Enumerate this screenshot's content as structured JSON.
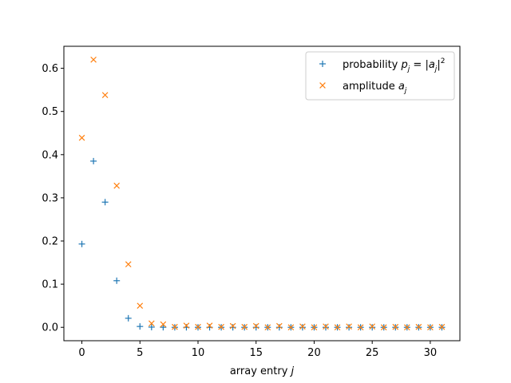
{
  "chart_data": {
    "type": "scatter",
    "title": "",
    "xlabel": {
      "text": "array entry ",
      "var": "j"
    },
    "ylabel": "",
    "xlim": [
      -1.55,
      32.55
    ],
    "ylim": [
      -0.031,
      0.651
    ],
    "xticks": [
      0,
      5,
      10,
      15,
      20,
      25,
      30
    ],
    "xtick_labels": [
      "0",
      "5",
      "10",
      "15",
      "20",
      "25",
      "30"
    ],
    "yticks": [
      0.0,
      0.1,
      0.2,
      0.3,
      0.4,
      0.5,
      0.6
    ],
    "ytick_labels": [
      "0.0",
      "0.1",
      "0.2",
      "0.3",
      "0.4",
      "0.5",
      "0.6"
    ],
    "grid": false,
    "legend_position": "top-right",
    "series": [
      {
        "name": "probability p_j = |a_j|^2",
        "legend_parts": {
          "prefix": "probability ",
          "p": "p",
          "j": "j",
          "eq": " = |",
          "a": "a",
          "j2": "j",
          "close": "|",
          "sup": "2"
        },
        "marker": "plus",
        "color": "#1f77b4",
        "x": [
          0,
          1,
          2,
          3,
          4,
          5,
          6,
          7,
          8,
          9,
          10,
          11,
          12,
          13,
          14,
          15,
          16,
          17,
          18,
          19,
          20,
          21,
          22,
          23,
          24,
          25,
          26,
          27,
          28,
          29,
          30,
          31
        ],
        "y": [
          0.193,
          0.385,
          0.29,
          0.108,
          0.021,
          0.002,
          0.0005,
          0.0002,
          0.0,
          0.0,
          0.0,
          0.0,
          0.0,
          0.0,
          0.0,
          0.0,
          0.0,
          0.0,
          0.0,
          0.0,
          0.0,
          0.0,
          0.0,
          0.0,
          0.0,
          0.0,
          0.0,
          0.0,
          0.0,
          0.0,
          0.0,
          0.0
        ]
      },
      {
        "name": "amplitude a_j",
        "legend_parts": {
          "prefix": "amplitude ",
          "a": "a",
          "j": "j"
        },
        "marker": "x",
        "color": "#ff7f0e",
        "x": [
          0,
          1,
          2,
          3,
          4,
          5,
          6,
          7,
          8,
          9,
          10,
          11,
          12,
          13,
          14,
          15,
          16,
          17,
          18,
          19,
          20,
          21,
          22,
          23,
          24,
          25,
          26,
          27,
          28,
          29,
          30,
          31
        ],
        "y": [
          0.439,
          0.62,
          0.538,
          0.328,
          0.146,
          0.05,
          0.009,
          0.007,
          0.001,
          0.004,
          0.001,
          0.004,
          0.001,
          0.003,
          0.001,
          0.003,
          0.0,
          0.003,
          0.0,
          0.002,
          0.0,
          0.002,
          0.0,
          0.002,
          0.0,
          0.002,
          0.0,
          0.001,
          0.0,
          0.001,
          0.0,
          0.001
        ]
      }
    ]
  }
}
